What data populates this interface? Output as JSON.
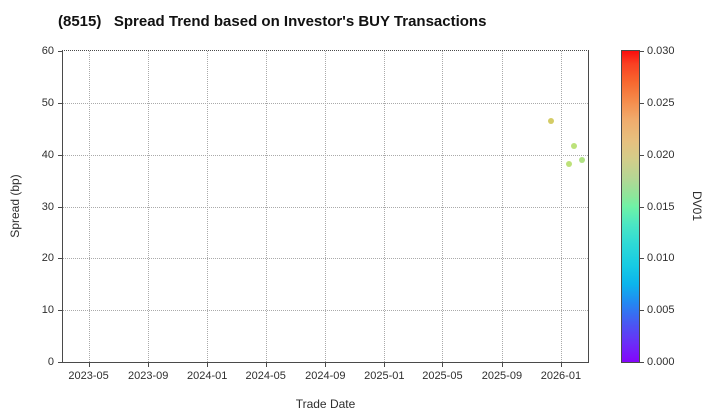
{
  "chart_data": {
    "type": "scatter",
    "title": "(8515)   Spread Trend based on Investor's BUY Transactions",
    "xlabel": "Trade Date",
    "ylabel": "Spread (bp)",
    "ylim": [
      0,
      60
    ],
    "y_ticks": [
      0,
      10,
      20,
      30,
      40,
      50,
      60
    ],
    "x_ticks": [
      {
        "label": "2023-05",
        "date": "2023-05-01"
      },
      {
        "label": "2023-09",
        "date": "2023-09-01"
      },
      {
        "label": "2024-01",
        "date": "2024-01-01"
      },
      {
        "label": "2024-05",
        "date": "2024-05-01"
      },
      {
        "label": "2024-09",
        "date": "2024-09-01"
      },
      {
        "label": "2025-01",
        "date": "2025-01-01"
      },
      {
        "label": "2025-05",
        "date": "2025-05-01"
      },
      {
        "label": "2025-09",
        "date": "2025-09-01"
      },
      {
        "label": "2026-01",
        "date": "2026-01-01"
      }
    ],
    "x_range": [
      "2023-03-09",
      "2026-02-26"
    ],
    "grid": true,
    "grid_style": "dotted",
    "points": [
      {
        "date": "2025-12-12",
        "spread": 46.6,
        "dv01": 0.019,
        "color": "#d2c95e"
      },
      {
        "date": "2026-01-17",
        "spread": 38.3,
        "dv01": 0.017,
        "color": "#b9df72"
      },
      {
        "date": "2026-01-27",
        "spread": 41.6,
        "dv01": 0.017,
        "color": "#b8e073"
      },
      {
        "date": "2026-02-13",
        "spread": 38.9,
        "dv01": 0.016,
        "color": "#ace07c"
      }
    ],
    "colorbar": {
      "label": "DV01",
      "min": 0.0,
      "max": 0.03,
      "ticks": [
        "0.000",
        "0.005",
        "0.010",
        "0.015",
        "0.020",
        "0.025",
        "0.030"
      ],
      "gradient_stops": [
        [
          0.0,
          "#8405fb"
        ],
        [
          0.06,
          "#6b2df7"
        ],
        [
          0.12,
          "#4b55f2"
        ],
        [
          0.19,
          "#2388f2"
        ],
        [
          0.25,
          "#0cb4ec"
        ],
        [
          0.31,
          "#17cbe3"
        ],
        [
          0.38,
          "#2edad6"
        ],
        [
          0.44,
          "#4ae6c4"
        ],
        [
          0.5,
          "#6ff2a6"
        ],
        [
          0.53,
          "#8ae79b"
        ],
        [
          0.59,
          "#b4d694"
        ],
        [
          0.65,
          "#d2cd8a"
        ],
        [
          0.71,
          "#e7c07f"
        ],
        [
          0.78,
          "#f0ab6c"
        ],
        [
          0.84,
          "#f58b4b"
        ],
        [
          0.9,
          "#f7682f"
        ],
        [
          0.96,
          "#f93f22"
        ],
        [
          1.0,
          "#fb0d0d"
        ]
      ]
    },
    "colors": {
      "background": "#ffffff",
      "spine": "#4a4a4a",
      "grid": "#aaaaaa",
      "text": "#2e2e2e",
      "title_text": "#111111"
    }
  }
}
